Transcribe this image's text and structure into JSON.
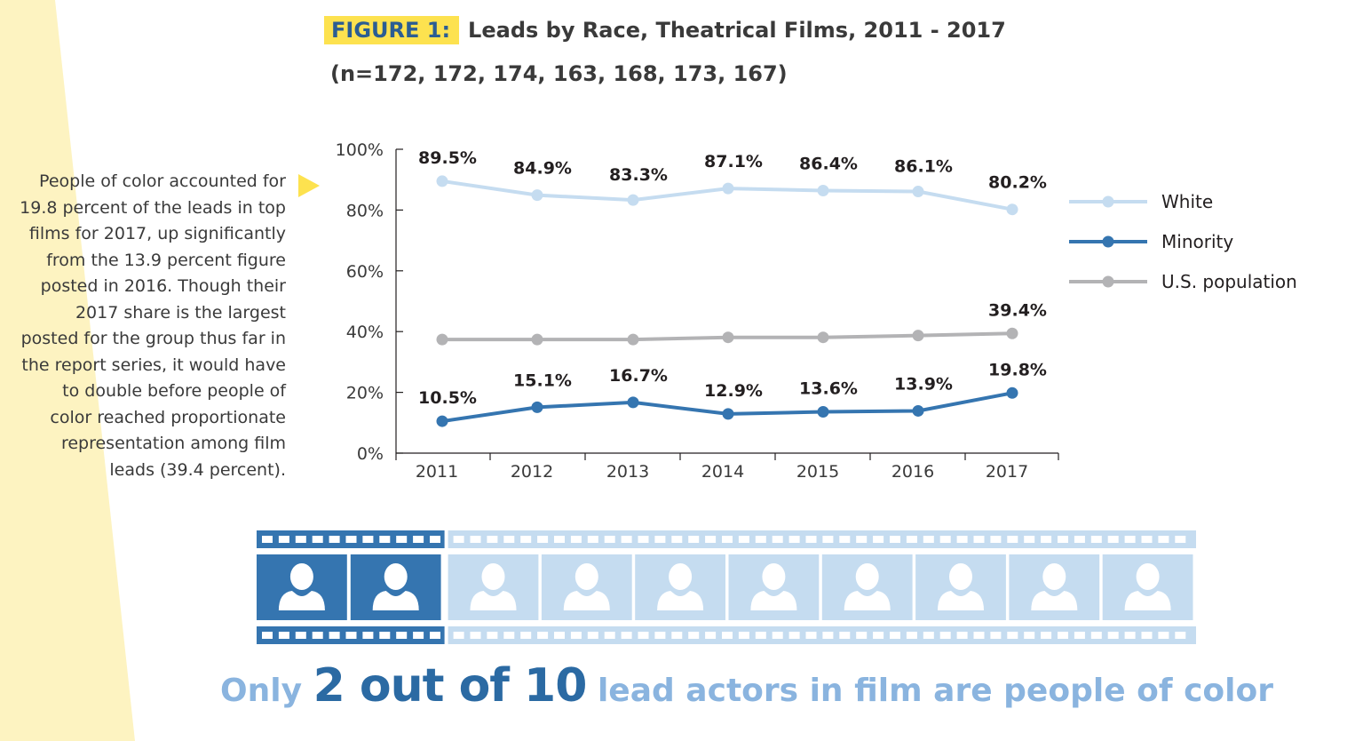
{
  "figure": {
    "label": "FIGURE 1:",
    "title": "Leads by Race, Theatrical Films, 2011 - 2017",
    "subtitle": "(n=172, 172, 174, 163, 168, 173, 167)"
  },
  "side_note": "People of color accounted for 19.8 percent of the leads in top films for 2017, up significantly from the 13.9 percent figure posted in 2016. Though their 2017 share is the largest posted for the group thus far in the report series, it would have to double before people of color reached proportionate representation among film leads (39.4 percent).",
  "colors": {
    "white_series": "#c5dcf0",
    "minority_series": "#3575b0",
    "population_series": "#b3b3b5",
    "highlight_yellow": "#fde24f",
    "band_yellow": "#fdf3c1",
    "filmstrip_dark": "#3575b0",
    "filmstrip_light": "#c5dcf0"
  },
  "chart_data": {
    "type": "line",
    "categories": [
      "2011",
      "2012",
      "2013",
      "2014",
      "2015",
      "2016",
      "2017"
    ],
    "yticks": [
      "0%",
      "20%",
      "40%",
      "60%",
      "80%",
      "100%"
    ],
    "ylim": [
      0,
      100
    ],
    "legend_position": "right",
    "series": [
      {
        "name": "White",
        "color_key": "white_series",
        "values": [
          89.5,
          84.9,
          83.3,
          87.1,
          86.4,
          86.1,
          80.2
        ],
        "labels": [
          "89.5%",
          "84.9%",
          "83.3%",
          "87.1%",
          "86.4%",
          "86.1%",
          "80.2%"
        ]
      },
      {
        "name": "Minority",
        "color_key": "minority_series",
        "values": [
          10.5,
          15.1,
          16.7,
          12.9,
          13.6,
          13.9,
          19.8
        ],
        "labels": [
          "10.5%",
          "15.1%",
          "16.7%",
          "12.9%",
          "13.6%",
          "13.9%",
          "19.8%"
        ]
      },
      {
        "name": "U.S. population",
        "color_key": "population_series",
        "values": [
          37.4,
          37.4,
          37.4,
          38.1,
          38.1,
          38.7,
          39.4
        ],
        "labels": [
          "",
          "",
          "",
          "",
          "",
          "",
          "39.4%"
        ]
      }
    ]
  },
  "filmstrip": {
    "total_frames": 10,
    "highlighted_frames": 2,
    "frame_icon": "person-silhouette-icon"
  },
  "tagline": {
    "part1": "Only",
    "part2": "2 out of 10",
    "part3": "lead actors in film are people of color"
  }
}
